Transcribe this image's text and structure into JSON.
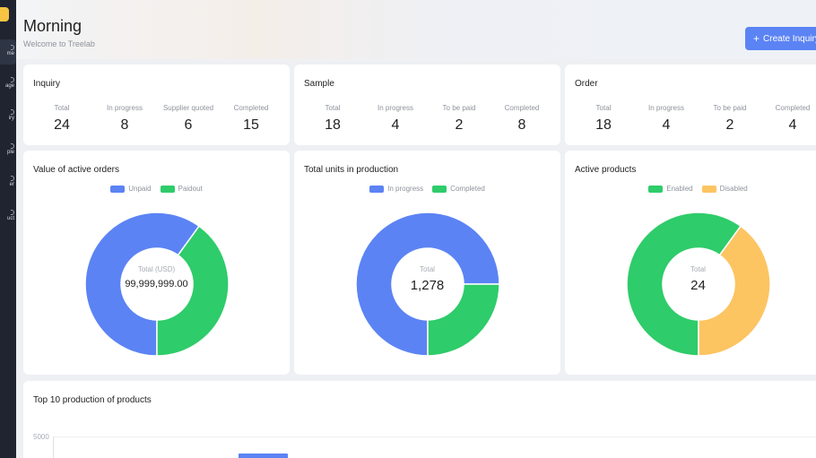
{
  "header": {
    "title": "Morning",
    "subtitle": "Welcome to Treelab",
    "create_button": "Create Inquiry"
  },
  "sidebar": {
    "items": [
      {
        "label": "me",
        "active": true
      },
      {
        "label": "age",
        "active": false
      },
      {
        "label": "iry",
        "active": false
      },
      {
        "label": "ple",
        "active": false
      },
      {
        "label": "er",
        "active": false
      },
      {
        "label": "uct",
        "active": false
      }
    ]
  },
  "summary_cards": [
    {
      "title": "Inquiry",
      "stats": [
        {
          "label": "Total",
          "value": "24"
        },
        {
          "label": "In progress",
          "value": "8"
        },
        {
          "label": "Supplier quoted",
          "value": "6"
        },
        {
          "label": "Completed",
          "value": "15"
        }
      ]
    },
    {
      "title": "Sample",
      "stats": [
        {
          "label": "Total",
          "value": "18"
        },
        {
          "label": "In progress",
          "value": "4"
        },
        {
          "label": "To be paid",
          "value": "2"
        },
        {
          "label": "Completed",
          "value": "8"
        }
      ]
    },
    {
      "title": "Order",
      "stats": [
        {
          "label": "Total",
          "value": "18"
        },
        {
          "label": "In progress",
          "value": "4"
        },
        {
          "label": "To be paid",
          "value": "2"
        },
        {
          "label": "Completed",
          "value": "4"
        }
      ]
    }
  ],
  "colors": {
    "blue": "#5b83f4",
    "green": "#2ecc6a",
    "yellow": "#fdc462",
    "accent": "#5b83f4"
  },
  "chart_data": [
    {
      "type": "pie",
      "title": "Value of active orders",
      "legend": [
        "Unpaid",
        "Paidout"
      ],
      "center_label": "Total (USD)",
      "center_value": "99,999,999.00",
      "values": [
        60,
        40
      ]
    },
    {
      "type": "pie",
      "title": "Total units in production",
      "legend": [
        "In progress",
        "Completed"
      ],
      "center_label": "Total",
      "center_value": "1,278",
      "values": [
        75,
        25
      ]
    },
    {
      "type": "pie",
      "title": "Active products",
      "legend": [
        "Enabled",
        "Disabled"
      ],
      "center_label": "Total",
      "center_value": "24",
      "values": [
        60,
        40
      ]
    },
    {
      "type": "bar",
      "title": "Top 10 production of products",
      "y_ticks": [
        "5000"
      ],
      "categories": [],
      "values": []
    }
  ]
}
